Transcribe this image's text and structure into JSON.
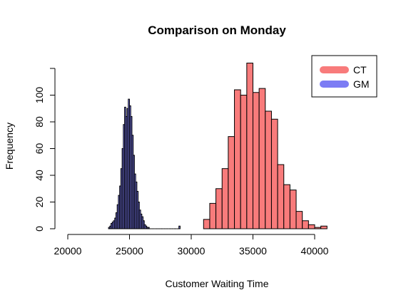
{
  "chart_data": {
    "type": "bar",
    "title": "Comparison on Monday",
    "xlabel": "Customer Waiting Time",
    "ylabel": "Frequency",
    "xlim": [
      20000,
      40000
    ],
    "ylim": [
      0,
      120
    ],
    "x_ticks": [
      20000,
      25000,
      30000,
      35000,
      40000
    ],
    "y_ticks": [
      0,
      20,
      40,
      60,
      80,
      100
    ],
    "x_tick_labels": [
      "20000",
      "25000",
      "30000",
      "35000",
      "40000"
    ],
    "y_tick_labels": [
      "0",
      "20",
      "40",
      "60",
      "80",
      "100"
    ],
    "legend_position": "top-right",
    "series": [
      {
        "name": "CT",
        "color": "#f87b7b",
        "bin_width": 500,
        "bin_starts": [
          31000,
          31500,
          32000,
          32500,
          33000,
          33500,
          34000,
          34500,
          35000,
          35500,
          36000,
          36500,
          37000,
          37500,
          38000,
          38500,
          39000,
          39500,
          40000,
          40500
        ],
        "counts": [
          7,
          19,
          30,
          45,
          69,
          104,
          100,
          124,
          102,
          105,
          88,
          82,
          48,
          33,
          29,
          13,
          6,
          3,
          1,
          2
        ]
      },
      {
        "name": "GM",
        "color": "#7c7cf4",
        "bin_width": 100,
        "bin_starts": [
          23300,
          23400,
          23500,
          23600,
          23700,
          23800,
          23900,
          24000,
          24100,
          24200,
          24300,
          24400,
          24500,
          24600,
          24700,
          24800,
          24900,
          25000,
          25100,
          25200,
          25300,
          25400,
          25500,
          25600,
          25700,
          25800,
          25900,
          26000,
          26100,
          26200,
          26300,
          26400,
          26500,
          26600,
          26700,
          26800,
          26900,
          27000,
          27100,
          27200,
          27300,
          27400,
          27500,
          27600,
          27700,
          27800,
          27900,
          28000,
          28100,
          28200,
          28300,
          28400,
          28500,
          28600,
          28700,
          28800,
          28900,
          29000
        ],
        "counts": [
          1,
          2,
          4,
          5,
          6,
          8,
          12,
          18,
          25,
          32,
          45,
          60,
          78,
          91,
          84,
          90,
          97,
          92,
          84,
          70,
          55,
          41,
          35,
          28,
          20,
          14,
          11,
          9,
          6,
          3,
          2,
          1,
          1,
          0,
          0,
          0,
          0,
          0,
          0,
          0,
          0,
          0,
          0,
          0,
          0,
          0,
          0,
          0,
          0,
          0,
          0,
          0,
          0,
          0,
          0,
          0,
          0,
          2
        ]
      }
    ]
  }
}
